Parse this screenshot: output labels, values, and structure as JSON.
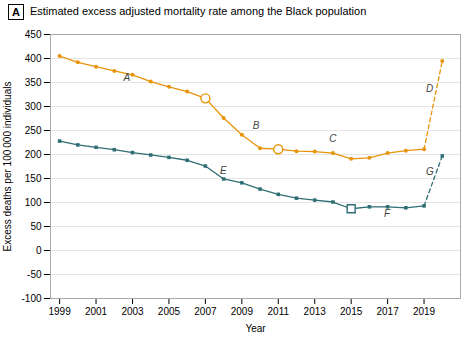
{
  "chart_data": {
    "type": "line",
    "panel_label": "A",
    "title": "Estimated excess adjusted mortality rate among the Black population",
    "xlabel": "Year",
    "ylabel": "Excess deaths per 100 000 individuals",
    "xlim": [
      1998.5,
      2021.0
    ],
    "xticks": [
      1999,
      2001,
      2003,
      2005,
      2007,
      2009,
      2011,
      2013,
      2015,
      2017,
      2019
    ],
    "ylim": [
      -100,
      450
    ],
    "yticks": [
      -100,
      -50,
      0,
      50,
      100,
      150,
      200,
      250,
      300,
      350,
      400,
      450
    ],
    "grid": true,
    "series": [
      {
        "type": "line",
        "color": "#E8940A",
        "line_style": "solid",
        "marker": "circle",
        "x": [
          1999,
          2000,
          2001,
          2002,
          2003,
          2004,
          2005,
          2006,
          2007,
          2008,
          2009,
          2010,
          2011,
          2012,
          2013,
          2014,
          2015,
          2016,
          2017,
          2018,
          2019
        ],
        "values": [
          405,
          392,
          383,
          374,
          366,
          352,
          341,
          331,
          317,
          276,
          241,
          213,
          211,
          207,
          206,
          203,
          191,
          193,
          203,
          208,
          211
        ]
      },
      {
        "type": "scatter",
        "color": "#E8940A",
        "marker": "open circle",
        "x": [
          2007,
          2011
        ],
        "values": [
          317,
          211
        ]
      },
      {
        "type": "line",
        "color": "#E8940A",
        "line_style": "dashed",
        "x": [
          2019,
          2020
        ],
        "values": [
          211,
          395
        ]
      },
      {
        "type": "scatter",
        "color": "#E8940A",
        "marker": "circle",
        "x": [
          2020
        ],
        "values": [
          395
        ]
      },
      {
        "type": "line",
        "color": "#2E6E74",
        "line_style": "solid",
        "marker": "square",
        "x": [
          1999,
          2000,
          2001,
          2002,
          2003,
          2004,
          2005,
          2006,
          2007,
          2008,
          2009,
          2010,
          2011,
          2012,
          2013,
          2014,
          2015,
          2016,
          2017,
          2018,
          2019
        ],
        "values": [
          228,
          220,
          215,
          210,
          204,
          199,
          194,
          188,
          176,
          149,
          141,
          128,
          117,
          109,
          105,
          101,
          87,
          91,
          91,
          89,
          93
        ]
      },
      {
        "type": "scatter",
        "color": "#2E6E74",
        "marker": "open square",
        "x": [
          2015
        ],
        "values": [
          87
        ]
      },
      {
        "type": "line",
        "color": "#2E6E74",
        "line_style": "dashed",
        "x": [
          2019,
          2020
        ],
        "values": [
          93,
          197
        ]
      },
      {
        "type": "scatter",
        "color": "#2E6E74",
        "marker": "square",
        "x": [
          2020
        ],
        "values": [
          197
        ]
      }
    ],
    "annotations": [
      {
        "label": "A",
        "x": 2002.5,
        "y": 353,
        "color": "#444444"
      },
      {
        "label": "B",
        "x": 2009.6,
        "y": 254,
        "color": "#444444"
      },
      {
        "label": "C",
        "x": 2013.8,
        "y": 226,
        "color": "#444444"
      },
      {
        "label": "D",
        "x": 2019.1,
        "y": 330,
        "color": "#444444"
      },
      {
        "label": "E",
        "x": 2007.8,
        "y": 159,
        "color": "#444444"
      },
      {
        "label": "F",
        "x": 2016.8,
        "y": 70,
        "color": "#444444"
      },
      {
        "label": "G",
        "x": 2019.1,
        "y": 158,
        "color": "#444444"
      }
    ]
  }
}
